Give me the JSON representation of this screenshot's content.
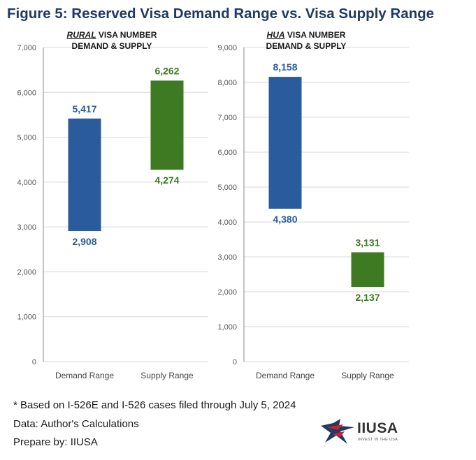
{
  "title": "Figure 5: Reserved Visa Demand Range vs. Visa Supply Range",
  "colors": {
    "demand": "#2a5b9c",
    "supply": "#3d7a22",
    "axis": "#888888",
    "grid": "#d9d9d9",
    "title": "#1f3b63"
  },
  "chart_data": [
    {
      "type": "bar",
      "subtype": "floating-range",
      "title_lead": "RURAL",
      "title_rest": " VISA NUMBER",
      "title_line2": "DEMAND & SUPPLY",
      "categories": [
        "Demand Range",
        "Supply Range"
      ],
      "ranges": [
        {
          "name": "Demand Range",
          "low": 2908,
          "high": 5417,
          "low_label": "2,908",
          "high_label": "5,417",
          "color": "#2a5b9c"
        },
        {
          "name": "Supply Range",
          "low": 4274,
          "high": 6262,
          "low_label": "4,274",
          "high_label": "6,262",
          "color": "#3d7a22"
        }
      ],
      "ylim": [
        0,
        7000
      ],
      "yticks": [
        0,
        1000,
        2000,
        3000,
        4000,
        5000,
        6000,
        7000
      ],
      "ytick_labels": [
        "0",
        "1,000",
        "2,000",
        "3,000",
        "4,000",
        "5,000",
        "6,000",
        "7,000"
      ],
      "xlabel": "",
      "ylabel": ""
    },
    {
      "type": "bar",
      "subtype": "floating-range",
      "title_lead": "HUA",
      "title_rest": " VISA NUMBER",
      "title_line2": "DEMAND & SUPPLY",
      "categories": [
        "Demand Range",
        "Supply Range"
      ],
      "ranges": [
        {
          "name": "Demand Range",
          "low": 4380,
          "high": 8158,
          "low_label": "4,380",
          "high_label": "8,158",
          "color": "#2a5b9c"
        },
        {
          "name": "Supply Range",
          "low": 2137,
          "high": 3131,
          "low_label": "2,137",
          "high_label": "3,131",
          "color": "#3d7a22"
        }
      ],
      "ylim": [
        0,
        9000
      ],
      "yticks": [
        0,
        1000,
        2000,
        3000,
        4000,
        5000,
        6000,
        7000,
        8000,
        9000
      ],
      "ytick_labels": [
        "0",
        "1,000",
        "2,000",
        "3,000",
        "4,000",
        "5,000",
        "6,000",
        "7,000",
        "8,000",
        "9,000"
      ],
      "xlabel": "",
      "ylabel": ""
    }
  ],
  "footer": {
    "note": "* Based on I-526E and I-526 cases filed through July 5, 2024",
    "data_source": "Data: Author's Calculations",
    "prepared_by": "Prepare by: IIUSA"
  },
  "logo": {
    "text": "IIUSA",
    "tagline": "INVEST IN THE USA"
  }
}
